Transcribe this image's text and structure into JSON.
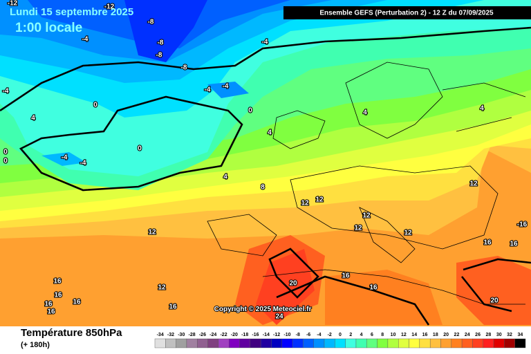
{
  "header": {
    "date": "Lundi 15 septembre 2025",
    "time": "1:00 locale",
    "model": "Ensemble GEFS  (Perturbation 2)  -  12 Z du 07/09/2025"
  },
  "footer": {
    "field": "Température 850hPa",
    "lead": "(+ 180h)",
    "copyright": "Copyright © 2025 Meteociel.fr"
  },
  "scale": {
    "values": [
      -34,
      -32,
      -30,
      -28,
      -26,
      -24,
      -22,
      -20,
      -18,
      -16,
      -14,
      -12,
      -10,
      -8,
      -6,
      -4,
      -2,
      0,
      2,
      4,
      6,
      8,
      10,
      12,
      14,
      16,
      18,
      20,
      22,
      24,
      26,
      28,
      30,
      32,
      34
    ],
    "colors": [
      "#e0e0e0",
      "#c0c0c0",
      "#a0a0a0",
      "#a080a0",
      "#906090",
      "#804080",
      "#a040c0",
      "#8000c0",
      "#6000a0",
      "#400080",
      "#2000a0",
      "#0000c0",
      "#0000ff",
      "#0030ff",
      "#0060ff",
      "#0090ff",
      "#00b8ff",
      "#00e0ff",
      "#40ffe0",
      "#40ffb0",
      "#60ff80",
      "#80ff40",
      "#b0ff40",
      "#e0ff40",
      "#ffff40",
      "#ffe040",
      "#ffc040",
      "#ffa030",
      "#ff8020",
      "#ff6020",
      "#ff4020",
      "#ff2020",
      "#e00000",
      "#a00000",
      "#000000"
    ]
  },
  "map": {
    "contour_labels": [
      -12,
      -12,
      -8,
      -8,
      -8,
      -8,
      -4,
      -4,
      -4,
      -4,
      -4,
      0,
      0,
      4,
      4,
      4,
      4,
      0,
      0,
      -4,
      -4,
      0,
      4,
      8,
      12,
      12,
      12,
      12,
      12,
      12,
      12,
      -16,
      16,
      16,
      16,
      16,
      16,
      16,
      16,
      12,
      16,
      16,
      16,
      20,
      20,
      24
    ]
  }
}
